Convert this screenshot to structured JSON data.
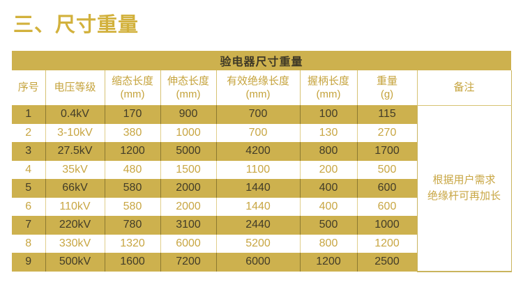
{
  "page": {
    "title": "三、尺寸重量"
  },
  "colors": {
    "gold_band": "#CDB14E",
    "gold_text": "#C8A643",
    "dark_text": "#423C28",
    "title_gold": "#D2B13C"
  },
  "table": {
    "caption": "验电器尺寸重量",
    "columns": [
      {
        "label": "序号",
        "unit": ""
      },
      {
        "label": "电压等级",
        "unit": ""
      },
      {
        "label": "缩态长度",
        "unit": "(mm)"
      },
      {
        "label": "伸态长度",
        "unit": "(mm)"
      },
      {
        "label": "有效绝缘长度",
        "unit": "(mm)"
      },
      {
        "label": "握柄长度",
        "unit": "(mm)"
      },
      {
        "label": "重量",
        "unit": "(g)"
      },
      {
        "label": "备注",
        "unit": ""
      }
    ],
    "rows": [
      {
        "no": "1",
        "voltage": "0.4kV",
        "values": [
          "170",
          "900",
          "700",
          "100",
          "115"
        ]
      },
      {
        "no": "2",
        "voltage": "3-10kV",
        "values": [
          "380",
          "1000",
          "700",
          "130",
          "270"
        ]
      },
      {
        "no": "3",
        "voltage": "27.5kV",
        "values": [
          "1200",
          "5000",
          "4200",
          "800",
          "1700"
        ]
      },
      {
        "no": "4",
        "voltage": "35kV",
        "values": [
          "480",
          "1500",
          "1100",
          "200",
          "500"
        ]
      },
      {
        "no": "5",
        "voltage": "66kV",
        "values": [
          "580",
          "2000",
          "1440",
          "400",
          "600"
        ]
      },
      {
        "no": "6",
        "voltage": "110kV",
        "values": [
          "580",
          "2000",
          "1440",
          "400",
          "600"
        ]
      },
      {
        "no": "7",
        "voltage": "220kV",
        "values": [
          "780",
          "3100",
          "2440",
          "500",
          "1000"
        ]
      },
      {
        "no": "8",
        "voltage": "330kV",
        "values": [
          "1320",
          "6000",
          "5200",
          "800",
          "1200"
        ]
      },
      {
        "no": "9",
        "voltage": "500kV",
        "values": [
          "1600",
          "7200",
          "6000",
          "1200",
          "2500"
        ]
      }
    ],
    "remark_lines": [
      "根据用户需求",
      "绝缘杆可再加长"
    ]
  }
}
